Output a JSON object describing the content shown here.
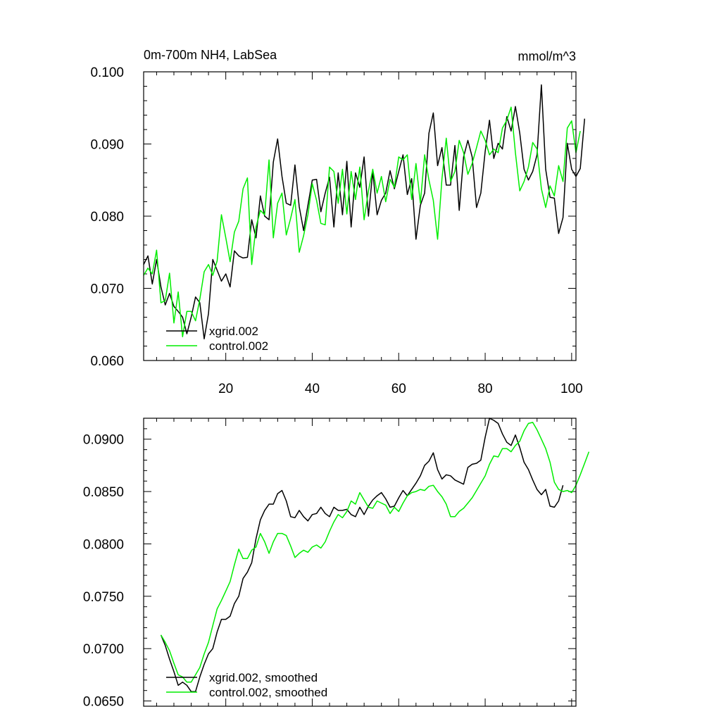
{
  "chart_data": [
    {
      "type": "line",
      "title": "0m-700m NH4, LabSea",
      "units": "mmol/m^3",
      "xlim": [
        1,
        101
      ],
      "ylim": [
        0.06,
        0.1
      ],
      "x_ticks": [
        20,
        40,
        60,
        80,
        100
      ],
      "x_tick_labels": [
        "20",
        "40",
        "60",
        "80",
        "100"
      ],
      "y_ticks": [
        0.06,
        0.07,
        0.08,
        0.09,
        0.1
      ],
      "y_tick_labels": [
        "0.060",
        "0.070",
        "0.080",
        "0.090",
        "0.100"
      ],
      "legend_position": "bottom-left",
      "series": [
        {
          "name": "xgrid.002",
          "color": "#000000",
          "x_start": 1,
          "values": [
            0.0733,
            0.0745,
            0.0706,
            0.074,
            0.0702,
            0.0677,
            0.0693,
            0.0675,
            0.0668,
            0.066,
            0.0637,
            0.066,
            0.0688,
            0.068,
            0.063,
            0.0665,
            0.074,
            0.0725,
            0.071,
            0.072,
            0.0702,
            0.0752,
            0.0745,
            0.0742,
            0.0743,
            0.0795,
            0.077,
            0.0828,
            0.08,
            0.0795,
            0.0875,
            0.0907,
            0.0855,
            0.0818,
            0.0815,
            0.0871,
            0.0813,
            0.078,
            0.0815,
            0.085,
            0.0851,
            0.0806,
            0.0832,
            0.0854,
            0.0785,
            0.086,
            0.0802,
            0.0876,
            0.0785,
            0.086,
            0.084,
            0.0882,
            0.08,
            0.0862,
            0.0802,
            0.0822,
            0.0832,
            0.0863,
            0.0838,
            0.0862,
            0.0885,
            0.083,
            0.0852,
            0.0768,
            0.0815,
            0.0832,
            0.0915,
            0.0943,
            0.087,
            0.0895,
            0.0843,
            0.0843,
            0.0898,
            0.0808,
            0.0882,
            0.0905,
            0.0882,
            0.0812,
            0.0832,
            0.089,
            0.0933,
            0.088,
            0.0901,
            0.0893,
            0.0938,
            0.0918,
            0.0952,
            0.0915,
            0.0865,
            0.085,
            0.0862,
            0.0885,
            0.0982,
            0.0865,
            0.0826,
            0.0825,
            0.0776,
            0.0798,
            0.0901,
            0.0865,
            0.0855,
            0.0866,
            0.0935
          ]
        },
        {
          "name": "control.002",
          "color": "#00ee00",
          "x_start": 1,
          "values": [
            0.0718,
            0.0728,
            0.072,
            0.0753,
            0.068,
            0.0683,
            0.0721,
            0.0652,
            0.0695,
            0.0633,
            0.0668,
            0.0668,
            0.0655,
            0.0685,
            0.0723,
            0.0733,
            0.0718,
            0.0738,
            0.0802,
            0.077,
            0.0737,
            0.0778,
            0.0793,
            0.0838,
            0.0853,
            0.0733,
            0.0785,
            0.0808,
            0.0802,
            0.0878,
            0.077,
            0.0818,
            0.0832,
            0.0774,
            0.0797,
            0.0823,
            0.075,
            0.0773,
            0.0802,
            0.0845,
            0.0822,
            0.079,
            0.0788,
            0.0868,
            0.0862,
            0.0818,
            0.0865,
            0.0803,
            0.0862,
            0.0823,
            0.0868,
            0.0795,
            0.0835,
            0.0865,
            0.0832,
            0.0855,
            0.082,
            0.0851,
            0.084,
            0.0882,
            0.0878,
            0.0885,
            0.0823,
            0.0873,
            0.0818,
            0.0885,
            0.085,
            0.0822,
            0.0768,
            0.0852,
            0.0908,
            0.0848,
            0.0862,
            0.0905,
            0.0888,
            0.0858,
            0.0873,
            0.0895,
            0.0918,
            0.0905,
            0.0885,
            0.0893,
            0.0888,
            0.0922,
            0.0933,
            0.0951,
            0.0888,
            0.0835,
            0.0848,
            0.0868,
            0.0902,
            0.0893,
            0.0838,
            0.0812,
            0.0842,
            0.0828,
            0.087,
            0.0848,
            0.0922,
            0.0932,
            0.0888,
            0.0918
          ]
        }
      ]
    },
    {
      "type": "line",
      "title": "",
      "xlim": [
        1,
        101
      ],
      "ylim": [
        0.0645,
        0.092
      ],
      "x_ticks": [
        20,
        40,
        60,
        80,
        100
      ],
      "x_tick_labels": [],
      "y_ticks": [
        0.065,
        0.07,
        0.075,
        0.08,
        0.085,
        0.09
      ],
      "y_tick_labels": [
        "0.0650",
        "0.0700",
        "0.0750",
        "0.0800",
        "0.0850",
        "0.0900"
      ],
      "legend_position": "bottom-left",
      "series": [
        {
          "name": "xgrid.002, smoothed",
          "color": "#000000",
          "x_start": 5,
          "values": [
            0.0713,
            0.0703,
            0.069,
            0.0678,
            0.0665,
            0.0668,
            0.0665,
            0.0659,
            0.0659,
            0.0673,
            0.0685,
            0.0695,
            0.07,
            0.0716,
            0.0728,
            0.0728,
            0.0731,
            0.0743,
            0.075,
            0.0767,
            0.0773,
            0.0782,
            0.0805,
            0.0823,
            0.0832,
            0.0838,
            0.0838,
            0.0848,
            0.0851,
            0.0841,
            0.0826,
            0.0825,
            0.0832,
            0.0826,
            0.0822,
            0.0828,
            0.0829,
            0.0835,
            0.0829,
            0.0826,
            0.0835,
            0.0832,
            0.0832,
            0.0833,
            0.0828,
            0.0826,
            0.0835,
            0.0828,
            0.0836,
            0.0842,
            0.0846,
            0.0849,
            0.0843,
            0.0835,
            0.0836,
            0.0844,
            0.0851,
            0.0846,
            0.0852,
            0.0858,
            0.0865,
            0.0875,
            0.0879,
            0.0887,
            0.0871,
            0.0862,
            0.0866,
            0.0865,
            0.0861,
            0.0859,
            0.0857,
            0.0873,
            0.0876,
            0.0877,
            0.088,
            0.0902,
            0.092,
            0.0918,
            0.0915,
            0.0905,
            0.0897,
            0.0894,
            0.0904,
            0.0892,
            0.0878,
            0.0871,
            0.0861,
            0.0852,
            0.0847,
            0.0852,
            0.0836,
            0.0835,
            0.0841,
            0.0856
          ]
        },
        {
          "name": "control.002, smoothed",
          "color": "#00ee00",
          "x_start": 5,
          "values": [
            0.0713,
            0.0706,
            0.0698,
            0.0686,
            0.0675,
            0.0673,
            0.0668,
            0.0668,
            0.0675,
            0.0682,
            0.0695,
            0.0706,
            0.0722,
            0.0738,
            0.0746,
            0.0755,
            0.0764,
            0.078,
            0.0795,
            0.0786,
            0.0786,
            0.0794,
            0.0797,
            0.081,
            0.0802,
            0.0791,
            0.0802,
            0.081,
            0.081,
            0.0808,
            0.0798,
            0.0787,
            0.0791,
            0.0794,
            0.0792,
            0.0797,
            0.0799,
            0.0796,
            0.0802,
            0.0812,
            0.0821,
            0.0828,
            0.0825,
            0.0831,
            0.0841,
            0.0838,
            0.0849,
            0.0842,
            0.0835,
            0.0834,
            0.0841,
            0.0839,
            0.0837,
            0.0829,
            0.0835,
            0.0831,
            0.0839,
            0.0846,
            0.0849,
            0.085,
            0.0852,
            0.0851,
            0.0855,
            0.0856,
            0.085,
            0.0845,
            0.0838,
            0.0826,
            0.0826,
            0.0831,
            0.0834,
            0.0839,
            0.0844,
            0.0851,
            0.0858,
            0.0865,
            0.0876,
            0.0884,
            0.0883,
            0.0891,
            0.0891,
            0.0888,
            0.0894,
            0.0898,
            0.0908,
            0.0915,
            0.0916,
            0.0909,
            0.09,
            0.0891,
            0.0878,
            0.0859,
            0.0852,
            0.085,
            0.0851,
            0.0849,
            0.0856,
            0.0866,
            0.0877,
            0.0888
          ]
        }
      ]
    }
  ]
}
